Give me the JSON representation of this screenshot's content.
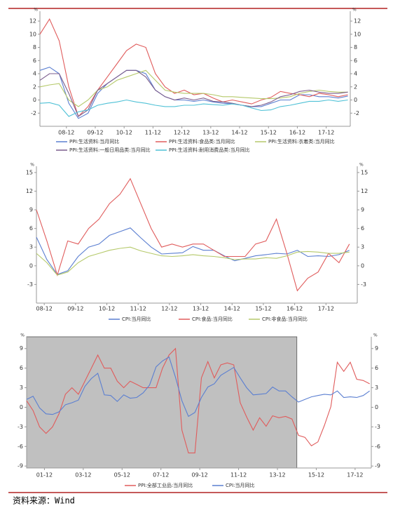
{
  "chart_data": [
    {
      "type": "line",
      "y_unit": "%",
      "x": [
        "08-01",
        "08-05",
        "08-09",
        "09-01",
        "09-05",
        "09-09",
        "10-01",
        "10-05",
        "10-09",
        "11-01",
        "11-05",
        "11-09",
        "12-01",
        "12-05",
        "12-09",
        "13-01",
        "13-05",
        "13-09",
        "14-01",
        "14-05",
        "14-09",
        "15-01",
        "15-05",
        "15-09",
        "16-01",
        "16-05",
        "16-09",
        "17-01",
        "17-05",
        "17-09",
        "18-01",
        "18-05",
        "18-09"
      ],
      "xlim": [
        "08-01",
        "18-10"
      ],
      "xticks": [
        "08-12",
        "09-12",
        "10-12",
        "11-12",
        "12-12",
        "13-12",
        "14-12",
        "15-12",
        "16-12",
        "17-12"
      ],
      "ylim": [
        -4,
        13.5
      ],
      "yticks": [
        -2,
        0,
        2,
        4,
        6,
        8,
        10,
        12
      ],
      "series": [
        {
          "name": "PPI:生活资料:当月同比",
          "color": "#5b7fd1",
          "values": [
            4.5,
            5,
            4,
            -0.5,
            -2.8,
            -2,
            1,
            2.5,
            3.5,
            4.5,
            4.5,
            4,
            1.5,
            0.5,
            0,
            0,
            -0.2,
            0,
            -0.3,
            -0.5,
            -0.6,
            -0.8,
            -1,
            -1,
            -0.5,
            0,
            0,
            0.8,
            0.8,
            0.5,
            0.5,
            0.3,
            0.6
          ]
        },
        {
          "name": "PPI:生活资料:食品类:当月同比",
          "color": "#e05c5c",
          "values": [
            10,
            12.3,
            9,
            2,
            -2.5,
            -1,
            1.5,
            3.5,
            5.5,
            7.5,
            8.5,
            8,
            4,
            2,
            1,
            1.5,
            0.8,
            1,
            0.3,
            -0.3,
            0,
            -0.3,
            -0.6,
            0,
            0.4,
            1.3,
            1,
            0.8,
            0.5,
            1,
            0.8,
            0.5,
            0.8
          ]
        },
        {
          "name": "PPI:生活资料:衣着类:当月同比",
          "color": "#b5c96a",
          "values": [
            2,
            2.3,
            2.5,
            0,
            -1,
            0,
            1.5,
            2,
            3,
            3.5,
            4,
            4.5,
            3,
            1.5,
            1.2,
            1,
            1,
            1,
            0.8,
            0.5,
            0.5,
            0.4,
            0.3,
            0.2,
            0.2,
            0.3,
            0.5,
            1,
            1.3,
            1.5,
            1.3,
            1.2,
            1.2
          ]
        },
        {
          "name": "PPI:生活资料:一般日用品类:当月同比",
          "color": "#7b5c8c",
          "values": [
            3,
            4,
            4,
            1,
            -2.5,
            -1.5,
            1.5,
            2.5,
            3.5,
            4.5,
            4.5,
            3.5,
            1.5,
            0.5,
            0,
            0.3,
            0,
            0.3,
            -0.2,
            -0.3,
            -0.5,
            -0.8,
            -1,
            -0.8,
            -0.3,
            0.5,
            0.8,
            1.3,
            1.5,
            1.2,
            1,
            1,
            1.2
          ]
        },
        {
          "name": "PPI:生活资料:耐用消费品类:当月同比",
          "color": "#4fc1d6",
          "values": [
            -0.5,
            -0.4,
            -0.8,
            -2.5,
            -1.8,
            -1.5,
            -0.8,
            -0.5,
            -0.3,
            0,
            -0.3,
            -0.5,
            -0.8,
            -1,
            -1,
            -0.8,
            -0.8,
            -0.6,
            -0.7,
            -0.8,
            -0.6,
            -0.8,
            -1.2,
            -1.6,
            -1.5,
            -1,
            -0.8,
            -0.5,
            -0.2,
            -0.2,
            0,
            -0.2,
            0
          ]
        }
      ]
    },
    {
      "type": "line",
      "y_unit": "%",
      "x": [
        "08-09",
        "09-01",
        "09-05",
        "09-09",
        "10-01",
        "10-05",
        "10-09",
        "11-01",
        "11-05",
        "11-09",
        "12-01",
        "12-05",
        "12-09",
        "13-01",
        "13-05",
        "13-09",
        "14-01",
        "14-05",
        "14-09",
        "15-01",
        "15-05",
        "15-09",
        "16-01",
        "16-05",
        "16-09",
        "17-01",
        "17-05",
        "17-09",
        "18-01",
        "18-05",
        "18-09"
      ],
      "xlim": [
        "08-09",
        "18-12"
      ],
      "xticks": [
        "08-12",
        "09-12",
        "10-12",
        "11-12",
        "12-12",
        "13-12",
        "14-12",
        "15-12",
        "16-12",
        "17-12"
      ],
      "ylim": [
        -6,
        16
      ],
      "yticks": [
        -3,
        0,
        3,
        6,
        9,
        12,
        15
      ],
      "series": [
        {
          "name": "CPI:当月同比",
          "color": "#5b7fd1",
          "values": [
            4.6,
            1,
            -1.4,
            -0.8,
            1.5,
            3,
            3.5,
            4.9,
            5.5,
            6.1,
            4.5,
            3,
            1.9,
            2,
            2.1,
            3.1,
            2.5,
            2.5,
            1.6,
            0.8,
            1.2,
            1.6,
            1.8,
            2,
            1.9,
            2.5,
            1.5,
            1.6,
            1.5,
            1.8,
            2.5
          ]
        },
        {
          "name": "CPI:食品:当月同比",
          "color": "#e05c5c",
          "values": [
            9,
            4,
            -1.5,
            4,
            3.5,
            6,
            7.5,
            10,
            11.5,
            14,
            10,
            6,
            3,
            3.5,
            3,
            3.5,
            3.5,
            2.5,
            1.5,
            1.5,
            1.5,
            3.5,
            4,
            7.5,
            2,
            -4,
            -2,
            -1,
            2,
            0.5,
            3.5
          ]
        },
        {
          "name": "CPI:非食品:当月同比",
          "color": "#b5c96a",
          "values": [
            2,
            0.5,
            -1.5,
            -1,
            0.5,
            1.5,
            2,
            2.5,
            2.8,
            3,
            2.4,
            2,
            1.6,
            1.5,
            1.6,
            1.8,
            1.6,
            1.5,
            1.3,
            1,
            1.1,
            1.1,
            1.3,
            1.2,
            1.6,
            2.2,
            2.3,
            2.2,
            2,
            2,
            2.2
          ]
        }
      ]
    },
    {
      "type": "line",
      "y_unit": "%",
      "x": [
        "01-01",
        "01-05",
        "01-09",
        "02-01",
        "02-05",
        "02-09",
        "03-01",
        "03-05",
        "03-09",
        "04-01",
        "04-05",
        "04-09",
        "05-01",
        "05-05",
        "05-09",
        "06-01",
        "06-05",
        "06-09",
        "07-01",
        "07-05",
        "07-09",
        "08-01",
        "08-05",
        "08-09",
        "09-01",
        "09-05",
        "09-09",
        "10-01",
        "10-05",
        "10-09",
        "11-01",
        "11-05",
        "11-09",
        "12-01",
        "12-05",
        "12-09",
        "13-01",
        "13-05",
        "13-09",
        "14-01",
        "14-05",
        "14-09",
        "15-01",
        "15-05",
        "15-09",
        "16-01",
        "16-05",
        "16-09",
        "17-01",
        "17-05",
        "17-09",
        "18-01",
        "18-05",
        "18-09"
      ],
      "xlim": [
        "01-01",
        "18-10"
      ],
      "xticks": [
        "01-12",
        "03-12",
        "05-12",
        "07-12",
        "09-12",
        "11-12",
        "13-12",
        "15-12",
        "17-12"
      ],
      "ylim": [
        -9.3,
        10.8
      ],
      "yticks": [
        -9,
        -6,
        -3,
        0,
        3,
        6,
        9
      ],
      "shaded_range": [
        "01-01",
        "14-12"
      ],
      "series": [
        {
          "name": "PPI:全部工业品:当月同比",
          "color": "#e05c5c",
          "values": [
            1,
            -0.5,
            -3,
            -4,
            -3,
            -1,
            2,
            3,
            2,
            4,
            6,
            8,
            6,
            6,
            4,
            3,
            4,
            3.5,
            3,
            3,
            3,
            6,
            8,
            9,
            -3.5,
            -7,
            -7,
            4.5,
            7,
            4.5,
            6.5,
            6.8,
            6.5,
            0.7,
            -1.5,
            -3.5,
            -1.6,
            -2.9,
            -1.3,
            -1.6,
            -1.4,
            -1.8,
            -4.3,
            -4.6,
            -5.9,
            -5.3,
            -2.8,
            0.1,
            6.9,
            5.5,
            6.9,
            4.3,
            4.1,
            3.6
          ]
        },
        {
          "name": "CPI:当月同比",
          "color": "#5b7fd1",
          "values": [
            1.2,
            1.7,
            -0.1,
            -1,
            -1.1,
            -0.7,
            0.4,
            0.7,
            1.1,
            3.2,
            4.4,
            5.2,
            1.9,
            1.8,
            0.9,
            1.9,
            1.4,
            1.5,
            2.2,
            3.4,
            6.2,
            7.1,
            7.7,
            4.6,
            1,
            -1.4,
            -0.8,
            1.5,
            3.1,
            3.6,
            4.9,
            5.5,
            6.1,
            4.5,
            3,
            1.9,
            2,
            2.1,
            3.1,
            2.5,
            2.5,
            1.6,
            0.8,
            1.2,
            1.6,
            1.8,
            2,
            1.9,
            2.5,
            1.5,
            1.6,
            1.5,
            1.8,
            2.5
          ]
        }
      ]
    }
  ],
  "footer": "资料来源：Wind"
}
